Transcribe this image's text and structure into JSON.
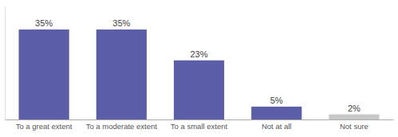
{
  "chart_data": {
    "type": "bar",
    "categories": [
      "To a great extent",
      "To a moderate extent",
      "To a small extent",
      "Not at all",
      "Not sure"
    ],
    "values": [
      35,
      35,
      23,
      5,
      2
    ],
    "value_labels": [
      "35%",
      "35%",
      "23%",
      "5%",
      "2%"
    ],
    "colors": [
      "#5b5ea6",
      "#5b5ea6",
      "#5b5ea6",
      "#5b5ea6",
      "#c8c8c8"
    ],
    "ylim": [
      0,
      44
    ],
    "data_labels": true,
    "tick_labels": "x"
  }
}
